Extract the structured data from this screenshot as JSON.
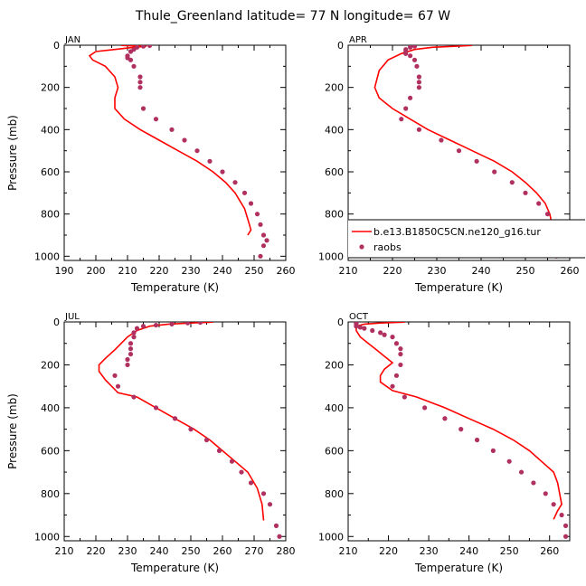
{
  "title": "Thule_Greenland   latitude= 77 N longitude= 67 W",
  "legend": {
    "model": "b.e13.B1850C5CN.ne120_g16.tur",
    "obs": "raobs"
  },
  "colors": {
    "model_line": "#ff0000",
    "obs_marker": "#b03060"
  },
  "chart_data": [
    {
      "type": "line",
      "panel": "JAN",
      "xlabel": "Temperature (K)",
      "ylabel": "Pressure (mb)",
      "xlim": [
        190,
        260
      ],
      "ylim": [
        1020,
        0
      ],
      "xticks": [
        190,
        200,
        210,
        220,
        230,
        240,
        250,
        260
      ],
      "yticks": [
        0,
        200,
        400,
        600,
        800,
        1000
      ],
      "legend": false,
      "model": {
        "x": [
          208,
          216,
          212,
          206,
          200,
          198,
          199,
          203,
          206,
          207,
          206,
          206,
          209,
          214,
          220,
          226,
          232,
          237,
          241,
          244,
          247,
          248.5,
          249,
          248
        ],
        "y": [
          1,
          5,
          10,
          20,
          30,
          50,
          70,
          100,
          150,
          200,
          250,
          300,
          350,
          400,
          450,
          500,
          550,
          600,
          650,
          700,
          775,
          850,
          875,
          900
        ]
      },
      "obs": {
        "x": [
          217,
          215,
          213,
          212,
          211,
          210,
          210,
          211,
          212,
          214,
          214,
          214,
          215,
          219,
          224,
          228,
          232,
          236,
          240,
          244,
          247,
          249,
          251,
          252,
          253,
          254,
          253,
          252
        ],
        "y": [
          2,
          5,
          10,
          20,
          30,
          50,
          60,
          70,
          100,
          150,
          175,
          200,
          300,
          350,
          400,
          450,
          500,
          550,
          600,
          650,
          700,
          750,
          800,
          850,
          900,
          925,
          950,
          1000
        ]
      }
    },
    {
      "type": "line",
      "panel": "APR",
      "xlabel": "Temperature (K)",
      "ylabel": "",
      "xlim": [
        210,
        260
      ],
      "ylim": [
        1020,
        0
      ],
      "xticks": [
        210,
        220,
        230,
        240,
        250,
        260
      ],
      "yticks": [
        0,
        200,
        400,
        600,
        800,
        1000
      ],
      "legend": true,
      "model": {
        "x": [
          238,
          234,
          229,
          225,
          222,
          219,
          217,
          216,
          217,
          220,
          224,
          228,
          233,
          238,
          243,
          247,
          250,
          252.5,
          254.5,
          255.5,
          256
        ],
        "y": [
          1,
          5,
          10,
          20,
          40,
          70,
          120,
          200,
          250,
          300,
          350,
          400,
          450,
          500,
          550,
          600,
          650,
          700,
          750,
          800,
          850
        ]
      },
      "obs": {
        "x": [
          225,
          224,
          223,
          223,
          223,
          224,
          225,
          225.5,
          226,
          226,
          226,
          224,
          223,
          222,
          226,
          231,
          235,
          239,
          243,
          247,
          250,
          253,
          255,
          256,
          257,
          257,
          257
        ],
        "y": [
          5,
          10,
          20,
          30,
          40,
          50,
          70,
          100,
          150,
          175,
          200,
          250,
          300,
          350,
          400,
          450,
          500,
          550,
          600,
          650,
          700,
          750,
          800,
          850,
          900,
          950,
          1000
        ]
      }
    },
    {
      "type": "line",
      "panel": "JUL",
      "xlabel": "Temperature (K)",
      "ylabel": "Pressure (mb)",
      "xlim": [
        210,
        280
      ],
      "ylim": [
        1020,
        0
      ],
      "xticks": [
        210,
        220,
        230,
        240,
        250,
        260,
        270,
        280
      ],
      "yticks": [
        0,
        200,
        400,
        600,
        800,
        1000
      ],
      "legend": false,
      "model": {
        "x": [
          257,
          250,
          243,
          237,
          233,
          230,
          228,
          226,
          223,
          221,
          221,
          223,
          227,
          233,
          239,
          245,
          251,
          256,
          260,
          264,
          268,
          271,
          272.5,
          273
        ],
        "y": [
          1,
          5,
          10,
          20,
          40,
          70,
          100,
          130,
          170,
          200,
          230,
          270,
          330,
          350,
          400,
          450,
          500,
          550,
          600,
          650,
          700,
          775,
          850,
          925
        ]
      },
      "obs": {
        "x": [
          253,
          249,
          244,
          239,
          235,
          233,
          232,
          232,
          231,
          231,
          231,
          230,
          230,
          226,
          227,
          232,
          239,
          245,
          250,
          255,
          259,
          263,
          266,
          269,
          273,
          275,
          277,
          278
        ],
        "y": [
          2,
          5,
          10,
          15,
          20,
          30,
          50,
          70,
          100,
          125,
          150,
          175,
          200,
          250,
          300,
          350,
          400,
          450,
          500,
          550,
          600,
          650,
          700,
          750,
          800,
          850,
          950,
          1000
        ]
      }
    },
    {
      "type": "line",
      "panel": "OCT",
      "xlabel": "Temperature (K)",
      "ylabel": "",
      "xlim": [
        210,
        265
      ],
      "ylim": [
        1020,
        0
      ],
      "xticks": [
        210,
        220,
        230,
        240,
        250,
        260
      ],
      "yticks": [
        0,
        200,
        400,
        600,
        800,
        1000
      ],
      "legend": false,
      "model": {
        "x": [
          224,
          218,
          214,
          212,
          212,
          213,
          215,
          217,
          219,
          221,
          219,
          218,
          218,
          221,
          227,
          234,
          240,
          246,
          251,
          255,
          258,
          261,
          262,
          263,
          262,
          261
        ],
        "y": [
          1,
          5,
          10,
          20,
          40,
          70,
          100,
          130,
          160,
          190,
          220,
          250,
          280,
          320,
          350,
          400,
          450,
          500,
          550,
          600,
          650,
          700,
          750,
          850,
          880,
          920
        ]
      },
      "obs": {
        "x": [
          212,
          212,
          212,
          213,
          214,
          216,
          218,
          219,
          221,
          222,
          223,
          223,
          223,
          222,
          221,
          224,
          229,
          234,
          238,
          242,
          246,
          250,
          253,
          256,
          259,
          261,
          263,
          264,
          264
        ],
        "y": [
          5,
          10,
          20,
          25,
          30,
          40,
          50,
          60,
          70,
          100,
          125,
          150,
          200,
          250,
          300,
          350,
          400,
          450,
          500,
          550,
          600,
          650,
          700,
          750,
          800,
          850,
          900,
          950,
          1000
        ]
      }
    }
  ]
}
